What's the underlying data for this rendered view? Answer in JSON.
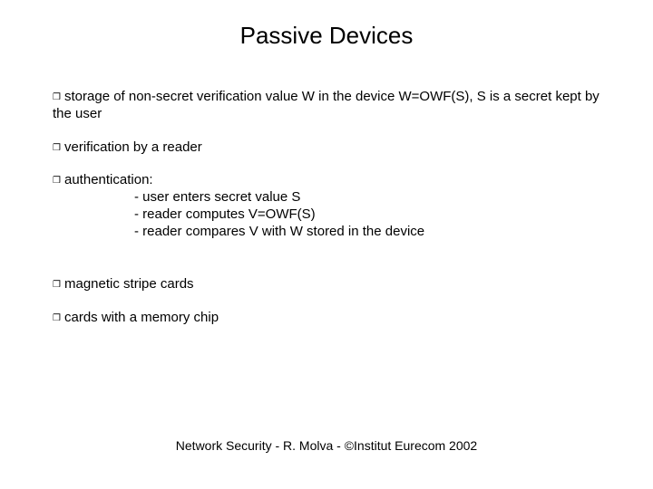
{
  "title": "Passive Devices",
  "bullets": {
    "b1": "storage of non-secret verification value W in the device W=OWF(S), S is a secret kept by the user",
    "b2": "verification by a reader",
    "b3": "authentication:",
    "b3s1": "- user enters secret value S",
    "b3s2": "- reader computes V=OWF(S)",
    "b3s3": "- reader compares V with W stored in the device",
    "b4": "magnetic stripe cards",
    "b5": "cards with a memory chip"
  },
  "footer": "Network Security - R. Molva - ©Institut Eurecom 2002",
  "style": {
    "title_fontsize": 26,
    "body_fontsize": 15,
    "footer_fontsize": 14,
    "text_color": "#000000",
    "background_color": "#ffffff",
    "bullet_marker": "❒"
  }
}
